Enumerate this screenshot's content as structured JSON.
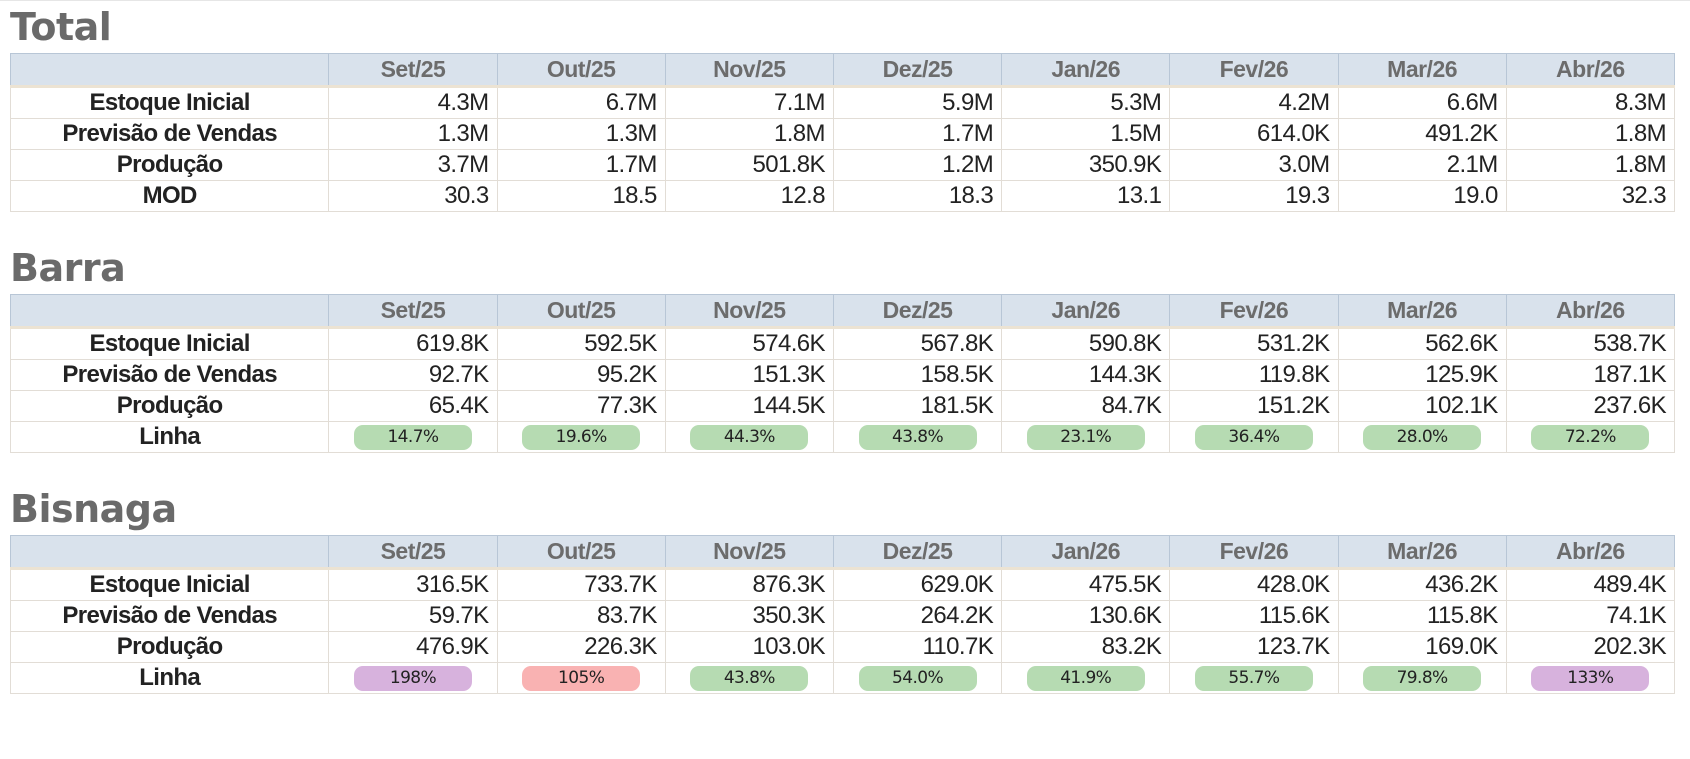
{
  "months": [
    "Set/25",
    "Out/25",
    "Nov/25",
    "Dez/25",
    "Jan/26",
    "Fev/26",
    "Mar/26",
    "Abr/26"
  ],
  "colors": {
    "green": "#b6dbb2",
    "purple": "#d7b2dd",
    "red": "#f9b2b2"
  },
  "sections": [
    {
      "title": "Total",
      "rows": [
        {
          "label": "Estoque Inicial",
          "values": [
            "4.3M",
            "6.7M",
            "7.1M",
            "5.9M",
            "5.3M",
            "4.2M",
            "6.6M",
            "8.3M"
          ]
        },
        {
          "label": "Previsão de Vendas",
          "values": [
            "1.3M",
            "1.3M",
            "1.8M",
            "1.7M",
            "1.5M",
            "614.0K",
            "491.2K",
            "1.8M"
          ]
        },
        {
          "label": "Produção",
          "values": [
            "3.7M",
            "1.7M",
            "501.8K",
            "1.2M",
            "350.9K",
            "3.0M",
            "2.1M",
            "1.8M"
          ]
        },
        {
          "label": "MOD",
          "values": [
            "30.3",
            "18.5",
            "12.8",
            "18.3",
            "13.1",
            "19.3",
            "19.0",
            "32.3"
          ]
        }
      ]
    },
    {
      "title": "Barra",
      "rows": [
        {
          "label": "Estoque Inicial",
          "values": [
            "619.8K",
            "592.5K",
            "574.6K",
            "567.8K",
            "590.8K",
            "531.2K",
            "562.6K",
            "538.7K"
          ]
        },
        {
          "label": "Previsão de Vendas",
          "values": [
            "92.7K",
            "95.2K",
            "151.3K",
            "158.5K",
            "144.3K",
            "119.8K",
            "125.9K",
            "187.1K"
          ]
        },
        {
          "label": "Produção",
          "values": [
            "65.4K",
            "77.3K",
            "144.5K",
            "181.5K",
            "84.7K",
            "151.2K",
            "102.1K",
            "237.6K"
          ]
        }
      ],
      "linha": {
        "label": "Linha",
        "values": [
          "14.7%",
          "19.6%",
          "44.3%",
          "43.8%",
          "23.1%",
          "36.4%",
          "28.0%",
          "72.2%"
        ],
        "colors": [
          "green",
          "green",
          "green",
          "green",
          "green",
          "green",
          "green",
          "green"
        ]
      }
    },
    {
      "title": "Bisnaga",
      "rows": [
        {
          "label": "Estoque Inicial",
          "values": [
            "316.5K",
            "733.7K",
            "876.3K",
            "629.0K",
            "475.5K",
            "428.0K",
            "436.2K",
            "489.4K"
          ]
        },
        {
          "label": "Previsão de Vendas",
          "values": [
            "59.7K",
            "83.7K",
            "350.3K",
            "264.2K",
            "130.6K",
            "115.6K",
            "115.8K",
            "74.1K"
          ]
        },
        {
          "label": "Produção",
          "values": [
            "476.9K",
            "226.3K",
            "103.0K",
            "110.7K",
            "83.2K",
            "123.7K",
            "169.0K",
            "202.3K"
          ]
        }
      ],
      "linha": {
        "label": "Linha",
        "values": [
          "198%",
          "105%",
          "43.8%",
          "54.0%",
          "41.9%",
          "55.7%",
          "79.8%",
          "133%"
        ],
        "colors": [
          "purple",
          "red",
          "green",
          "green",
          "green",
          "green",
          "green",
          "purple"
        ]
      }
    }
  ]
}
